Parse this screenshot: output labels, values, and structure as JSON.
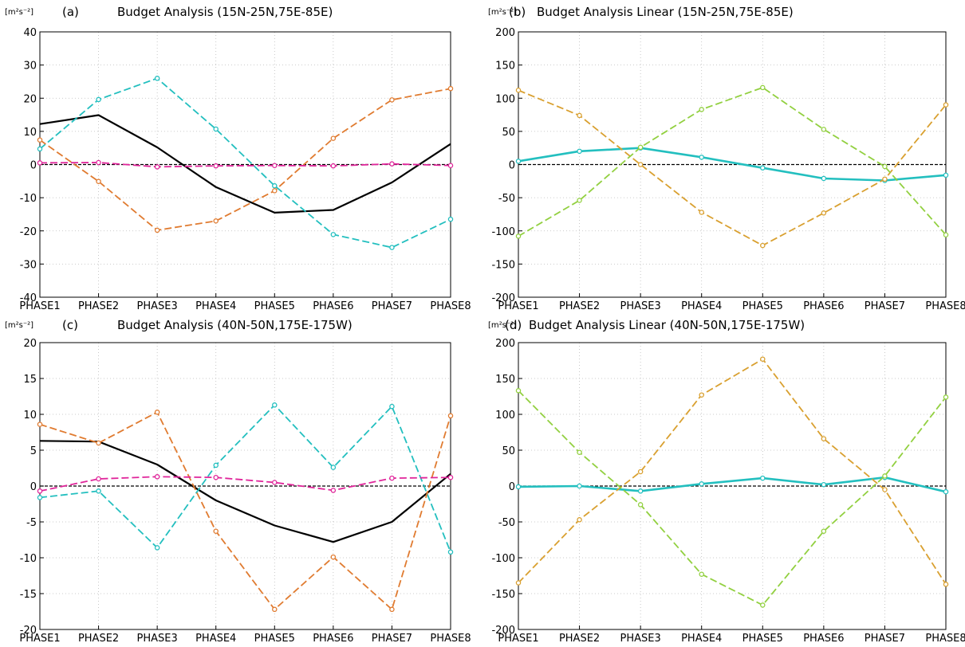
{
  "chart_data": [
    {
      "type": "line",
      "panel_label": "(a)",
      "title": "Budget Analysis (15N-25N,75E-85E)",
      "unit": "[m²s⁻²]",
      "categories": [
        "PHASE1",
        "PHASE2",
        "PHASE3",
        "PHASE4",
        "PHASE5",
        "PHASE6",
        "PHASE7",
        "PHASE8"
      ],
      "ylim": [
        -40,
        40
      ],
      "yticks": [
        -40,
        -30,
        -20,
        -10,
        0,
        10,
        20,
        30,
        40
      ],
      "grid": true,
      "series": [
        {
          "color": "#000000",
          "dashed": false,
          "markers": false,
          "values": [
            12.2,
            14.9,
            5.2,
            -6.8,
            -14.5,
            -13.7,
            -5.4,
            6.2
          ]
        },
        {
          "color": "#23bfbf",
          "dashed": true,
          "markers": true,
          "values": [
            4.7,
            19.6,
            26.0,
            10.7,
            -6.4,
            -21.1,
            -25.0,
            -16.5
          ]
        },
        {
          "color": "#e07b30",
          "dashed": true,
          "markers": true,
          "values": [
            7.4,
            -5.1,
            -19.8,
            -17.0,
            -7.9,
            7.9,
            19.5,
            22.9
          ]
        },
        {
          "color": "#e0259a",
          "dashed": true,
          "markers": true,
          "values": [
            0.5,
            0.6,
            -0.7,
            -0.4,
            -0.3,
            -0.4,
            0.2,
            -0.3
          ]
        }
      ]
    },
    {
      "type": "line",
      "panel_label": "(b)",
      "title": "Budget Analysis Linear (15N-25N,75E-85E)",
      "unit": "[m²s⁻²]",
      "categories": [
        "PHASE1",
        "PHASE2",
        "PHASE3",
        "PHASE4",
        "PHASE5",
        "PHASE6",
        "PHASE7",
        "PHASE8"
      ],
      "ylim": [
        -200,
        200
      ],
      "yticks": [
        -200,
        -150,
        -100,
        -50,
        0,
        50,
        100,
        150,
        200
      ],
      "grid": true,
      "series": [
        {
          "color": "#23bfbf",
          "dashed": false,
          "markers": true,
          "thick": true,
          "values": [
            5,
            20,
            25,
            11,
            -5,
            -21,
            -24,
            -16
          ]
        },
        {
          "color": "#d9a030",
          "dashed": true,
          "markers": true,
          "values": [
            112,
            74,
            0,
            -72,
            -122,
            -73,
            -22,
            90
          ]
        },
        {
          "color": "#92d040",
          "dashed": true,
          "markers": true,
          "values": [
            -108,
            -54,
            26,
            83,
            116,
            53,
            -3,
            -106
          ]
        }
      ]
    },
    {
      "type": "line",
      "panel_label": "(c)",
      "title": "Budget Analysis (40N-50N,175E-175W)",
      "unit": "[m²s⁻²]",
      "categories": [
        "PHASE1",
        "PHASE2",
        "PHASE3",
        "PHASE4",
        "PHASE5",
        "PHASE6",
        "PHASE7",
        "PHASE8"
      ],
      "ylim": [
        -20,
        20
      ],
      "yticks": [
        -20,
        -15,
        -10,
        -5,
        0,
        5,
        10,
        15,
        20
      ],
      "grid": true,
      "series": [
        {
          "color": "#000000",
          "dashed": false,
          "markers": false,
          "values": [
            6.3,
            6.2,
            3.0,
            -2.0,
            -5.5,
            -7.8,
            -5.0,
            1.7
          ]
        },
        {
          "color": "#23bfbf",
          "dashed": true,
          "markers": true,
          "values": [
            -1.6,
            -0.7,
            -8.6,
            2.9,
            11.3,
            2.6,
            11.1,
            -9.2
          ]
        },
        {
          "color": "#e07b30",
          "dashed": true,
          "markers": true,
          "values": [
            8.6,
            6.0,
            10.3,
            -6.3,
            -17.2,
            -9.9,
            -17.2,
            9.8
          ]
        },
        {
          "color": "#e0259a",
          "dashed": true,
          "markers": true,
          "values": [
            -0.7,
            1.0,
            1.3,
            1.2,
            0.5,
            -0.6,
            1.1,
            1.2
          ]
        }
      ]
    },
    {
      "type": "line",
      "panel_label": "(d)",
      "title": "Budget Analysis Linear (40N-50N,175E-175W)",
      "unit": "[m²s⁻²]",
      "categories": [
        "PHASE1",
        "PHASE2",
        "PHASE3",
        "PHASE4",
        "PHASE5",
        "PHASE6",
        "PHASE7",
        "PHASE8"
      ],
      "ylim": [
        -200,
        200
      ],
      "yticks": [
        -200,
        -150,
        -100,
        -50,
        0,
        50,
        100,
        150,
        200
      ],
      "grid": true,
      "series": [
        {
          "color": "#23bfbf",
          "dashed": false,
          "markers": true,
          "thick": true,
          "values": [
            -1,
            0,
            -7,
            3,
            11,
            2,
            12,
            -8
          ]
        },
        {
          "color": "#d9a030",
          "dashed": true,
          "markers": true,
          "values": [
            -135,
            -47,
            20,
            127,
            177,
            66,
            -5,
            -137
          ]
        },
        {
          "color": "#92d040",
          "dashed": true,
          "markers": true,
          "values": [
            133,
            47,
            -26,
            -123,
            -166,
            -63,
            14,
            124
          ]
        }
      ]
    }
  ]
}
